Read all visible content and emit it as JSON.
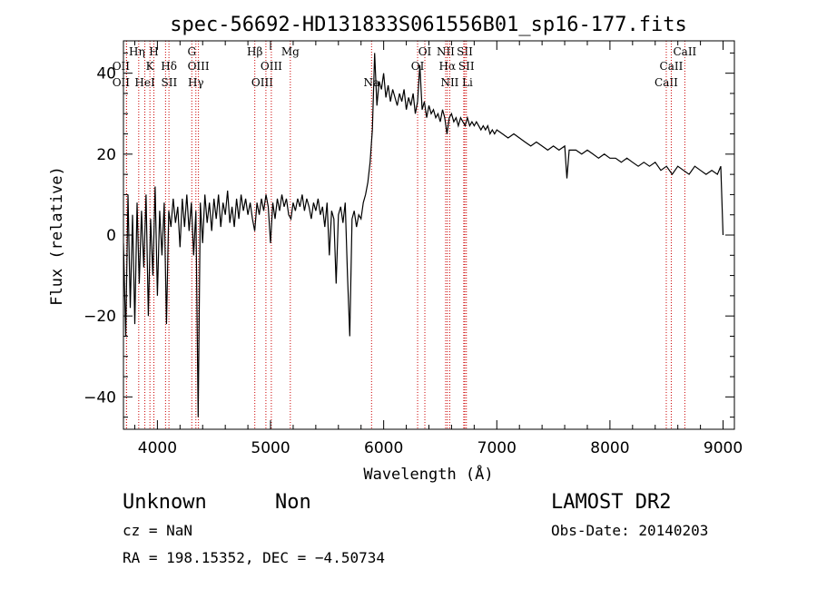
{
  "chart_data": {
    "type": "line",
    "title": "spec-56692-HD131833S061556B01_sp16-177.fits",
    "xlabel": "Wavelength (Å)",
    "ylabel": "Flux (relative)",
    "xlim": [
      3700,
      9100
    ],
    "ylim": [
      -48,
      48
    ],
    "xticks": [
      4000,
      5000,
      6000,
      7000,
      8000,
      9000
    ],
    "yticks": [
      -40,
      -20,
      0,
      20,
      40
    ],
    "grid": false,
    "series": [
      {
        "points": [
          [
            3700,
            -2
          ],
          [
            3720,
            -25
          ],
          [
            3740,
            10
          ],
          [
            3760,
            -18
          ],
          [
            3780,
            5
          ],
          [
            3800,
            -22
          ],
          [
            3820,
            8
          ],
          [
            3840,
            -12
          ],
          [
            3860,
            6
          ],
          [
            3880,
            -8
          ],
          [
            3900,
            10
          ],
          [
            3920,
            -20
          ],
          [
            3940,
            4
          ],
          [
            3960,
            -10
          ],
          [
            3980,
            12
          ],
          [
            4000,
            -15
          ],
          [
            4020,
            6
          ],
          [
            4040,
            -5
          ],
          [
            4060,
            8
          ],
          [
            4080,
            -22
          ],
          [
            4100,
            6
          ],
          [
            4120,
            2
          ],
          [
            4140,
            9
          ],
          [
            4160,
            3
          ],
          [
            4180,
            7
          ],
          [
            4200,
            -3
          ],
          [
            4220,
            9
          ],
          [
            4240,
            2
          ],
          [
            4260,
            10
          ],
          [
            4280,
            1
          ],
          [
            4300,
            8
          ],
          [
            4320,
            -5
          ],
          [
            4340,
            6
          ],
          [
            4360,
            -45
          ],
          [
            4380,
            8
          ],
          [
            4400,
            -2
          ],
          [
            4420,
            10
          ],
          [
            4440,
            3
          ],
          [
            4460,
            8
          ],
          [
            4480,
            1
          ],
          [
            4500,
            9
          ],
          [
            4520,
            4
          ],
          [
            4540,
            10
          ],
          [
            4560,
            2
          ],
          [
            4580,
            8
          ],
          [
            4600,
            5
          ],
          [
            4620,
            11
          ],
          [
            4640,
            3
          ],
          [
            4660,
            7
          ],
          [
            4680,
            2
          ],
          [
            4700,
            9
          ],
          [
            4720,
            4
          ],
          [
            4740,
            10
          ],
          [
            4760,
            6
          ],
          [
            4780,
            9
          ],
          [
            4800,
            5
          ],
          [
            4820,
            8
          ],
          [
            4840,
            4
          ],
          [
            4860,
            1
          ],
          [
            4880,
            8
          ],
          [
            4900,
            5
          ],
          [
            4920,
            9
          ],
          [
            4940,
            6
          ],
          [
            4960,
            10
          ],
          [
            4980,
            7
          ],
          [
            5000,
            -2
          ],
          [
            5020,
            8
          ],
          [
            5040,
            4
          ],
          [
            5060,
            9
          ],
          [
            5080,
            6
          ],
          [
            5100,
            10
          ],
          [
            5120,
            7
          ],
          [
            5140,
            9
          ],
          [
            5160,
            5
          ],
          [
            5180,
            4
          ],
          [
            5200,
            8
          ],
          [
            5220,
            6
          ],
          [
            5240,
            9
          ],
          [
            5260,
            7
          ],
          [
            5280,
            10
          ],
          [
            5300,
            6
          ],
          [
            5320,
            9
          ],
          [
            5340,
            7
          ],
          [
            5360,
            4
          ],
          [
            5380,
            8
          ],
          [
            5400,
            6
          ],
          [
            5420,
            9
          ],
          [
            5440,
            5
          ],
          [
            5460,
            7
          ],
          [
            5480,
            2
          ],
          [
            5500,
            8
          ],
          [
            5520,
            -5
          ],
          [
            5540,
            6
          ],
          [
            5560,
            4
          ],
          [
            5580,
            -12
          ],
          [
            5600,
            5
          ],
          [
            5620,
            7
          ],
          [
            5640,
            3
          ],
          [
            5660,
            8
          ],
          [
            5680,
            -10
          ],
          [
            5700,
            -25
          ],
          [
            5720,
            4
          ],
          [
            5740,
            6
          ],
          [
            5760,
            2
          ],
          [
            5780,
            5
          ],
          [
            5800,
            4
          ],
          [
            5820,
            8
          ],
          [
            5840,
            10
          ],
          [
            5860,
            13
          ],
          [
            5880,
            18
          ],
          [
            5900,
            26
          ],
          [
            5910,
            35
          ],
          [
            5920,
            45
          ],
          [
            5940,
            32
          ],
          [
            5960,
            38
          ],
          [
            5980,
            36
          ],
          [
            6000,
            40
          ],
          [
            6020,
            34
          ],
          [
            6040,
            37
          ],
          [
            6060,
            33
          ],
          [
            6080,
            36
          ],
          [
            6100,
            34
          ],
          [
            6120,
            32
          ],
          [
            6140,
            35
          ],
          [
            6160,
            33
          ],
          [
            6180,
            36
          ],
          [
            6200,
            31
          ],
          [
            6220,
            34
          ],
          [
            6240,
            32
          ],
          [
            6260,
            35
          ],
          [
            6280,
            30
          ],
          [
            6300,
            33
          ],
          [
            6320,
            42
          ],
          [
            6340,
            31
          ],
          [
            6360,
            33
          ],
          [
            6380,
            29
          ],
          [
            6400,
            32
          ],
          [
            6420,
            30
          ],
          [
            6440,
            31
          ],
          [
            6460,
            29
          ],
          [
            6480,
            30
          ],
          [
            6500,
            28
          ],
          [
            6520,
            31
          ],
          [
            6540,
            29
          ],
          [
            6560,
            25
          ],
          [
            6580,
            29
          ],
          [
            6600,
            30
          ],
          [
            6620,
            28
          ],
          [
            6640,
            29
          ],
          [
            6660,
            27
          ],
          [
            6680,
            29
          ],
          [
            6700,
            28
          ],
          [
            6720,
            27
          ],
          [
            6740,
            29
          ],
          [
            6760,
            27
          ],
          [
            6780,
            28
          ],
          [
            6800,
            27
          ],
          [
            6820,
            28
          ],
          [
            6840,
            27
          ],
          [
            6860,
            26
          ],
          [
            6880,
            27
          ],
          [
            6900,
            26
          ],
          [
            6920,
            27
          ],
          [
            6940,
            25
          ],
          [
            6960,
            26
          ],
          [
            6980,
            25
          ],
          [
            7000,
            26
          ],
          [
            7050,
            25
          ],
          [
            7100,
            24
          ],
          [
            7150,
            25
          ],
          [
            7200,
            24
          ],
          [
            7250,
            23
          ],
          [
            7300,
            22
          ],
          [
            7350,
            23
          ],
          [
            7400,
            22
          ],
          [
            7450,
            21
          ],
          [
            7500,
            22
          ],
          [
            7550,
            21
          ],
          [
            7600,
            22
          ],
          [
            7620,
            14
          ],
          [
            7640,
            21
          ],
          [
            7700,
            21
          ],
          [
            7750,
            20
          ],
          [
            7800,
            21
          ],
          [
            7850,
            20
          ],
          [
            7900,
            19
          ],
          [
            7950,
            20
          ],
          [
            8000,
            19
          ],
          [
            8050,
            19
          ],
          [
            8100,
            18
          ],
          [
            8150,
            19
          ],
          [
            8200,
            18
          ],
          [
            8250,
            17
          ],
          [
            8300,
            18
          ],
          [
            8350,
            17
          ],
          [
            8400,
            18
          ],
          [
            8450,
            16
          ],
          [
            8500,
            17
          ],
          [
            8550,
            15
          ],
          [
            8600,
            17
          ],
          [
            8650,
            16
          ],
          [
            8700,
            15
          ],
          [
            8750,
            17
          ],
          [
            8800,
            16
          ],
          [
            8850,
            15
          ],
          [
            8900,
            16
          ],
          [
            8950,
            15
          ],
          [
            8980,
            17
          ],
          [
            9000,
            0
          ]
        ]
      }
    ],
    "lines": [
      {
        "x": 3727,
        "label": "OII",
        "row": 1,
        "dx": -6
      },
      {
        "x": 3727,
        "label": "OII",
        "row": 2,
        "dx": -6
      },
      {
        "x": 3835,
        "label": "Hη",
        "row": 0,
        "dx": -2
      },
      {
        "x": 3889,
        "label": "HeI",
        "row": 2,
        "dx": 0
      },
      {
        "x": 3934,
        "label": "K",
        "row": 1,
        "dx": 0
      },
      {
        "x": 3969,
        "label": "H",
        "row": 0,
        "dx": 0
      },
      {
        "x": 4072,
        "label": "SII",
        "row": 2,
        "dx": 4
      },
      {
        "x": 4102,
        "label": "Hδ",
        "row": 1,
        "dx": 0
      },
      {
        "x": 4304,
        "label": "G",
        "row": 0,
        "dx": 0
      },
      {
        "x": 4340,
        "label": "Hγ",
        "row": 2,
        "dx": 0
      },
      {
        "x": 4363,
        "label": "OIII",
        "row": 1,
        "dx": 0
      },
      {
        "x": 4861,
        "label": "Hβ",
        "row": 0,
        "dx": 0
      },
      {
        "x": 4959,
        "label": "OIII",
        "row": 2,
        "dx": -4
      },
      {
        "x": 5007,
        "label": "OIII",
        "row": 1,
        "dx": 0
      },
      {
        "x": 5175,
        "label": "Mg",
        "row": 0,
        "dx": 0
      },
      {
        "x": 5893,
        "label": "Na",
        "row": 2,
        "dx": 0
      },
      {
        "x": 6300,
        "label": "OI",
        "row": 1,
        "dx": 0
      },
      {
        "x": 6364,
        "label": "OI",
        "row": 0,
        "dx": 0
      },
      {
        "x": 6548,
        "label": "NII",
        "row": 0,
        "dx": 0
      },
      {
        "x": 6563,
        "label": "Hα",
        "row": 1,
        "dx": 0
      },
      {
        "x": 6584,
        "label": "NII",
        "row": 2,
        "dx": 0
      },
      {
        "x": 6717,
        "label": "SII",
        "row": 0,
        "dx": 0
      },
      {
        "x": 6731,
        "label": "SII",
        "row": 1,
        "dx": 0
      },
      {
        "x": 6708,
        "label": "Li",
        "row": 2,
        "dx": 4
      },
      {
        "x": 8498,
        "label": "CaII",
        "row": 2,
        "dx": 0
      },
      {
        "x": 8542,
        "label": "CaII",
        "row": 1,
        "dx": 0
      },
      {
        "x": 8662,
        "label": "CaII",
        "row": 0,
        "dx": 0
      }
    ]
  },
  "footer": {
    "object_class": "Unknown",
    "subclass": "Non",
    "survey": "LAMOST DR2",
    "redshift": "cz = NaN",
    "obs_date": "Obs-Date: 20140203",
    "coords": "RA = 198.15352, DEC =  −4.50734"
  }
}
